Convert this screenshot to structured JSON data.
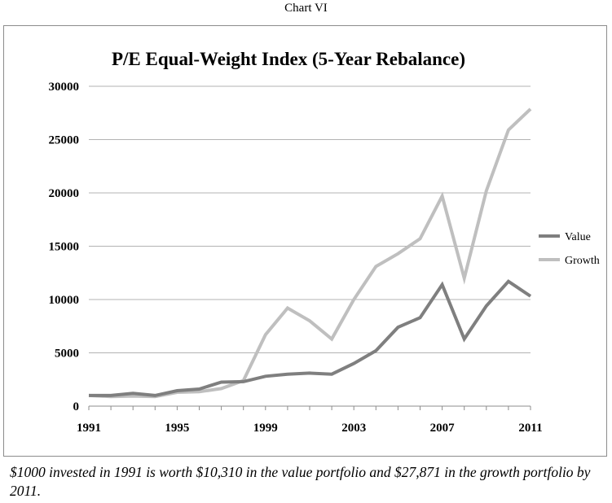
{
  "page": {
    "heading": "Chart VI",
    "caption": "$1000 invested in 1991 is worth $10,310 in the value portfolio and $27,871 in the growth portfolio by 2011."
  },
  "colors": {
    "value": "#7f7f7f",
    "growth": "#bfbfbf",
    "grid": "#b3b3b3",
    "axis": "#8c8c8c"
  },
  "chart_data": {
    "type": "line",
    "title": "P/E Equal-Weight Index (5-Year Rebalance)",
    "xlabel": "",
    "ylabel": "",
    "x": [
      1991,
      1992,
      1993,
      1994,
      1995,
      1996,
      1997,
      1998,
      1999,
      2000,
      2001,
      2002,
      2003,
      2004,
      2005,
      2006,
      2007,
      2008,
      2009,
      2010,
      2011
    ],
    "x_ticks": [
      "1991",
      "1995",
      "1999",
      "2003",
      "2007",
      "2011"
    ],
    "y_ticks": [
      "0",
      "5000",
      "10000",
      "15000",
      "20000",
      "25000",
      "30000"
    ],
    "ylim": [
      0,
      30000
    ],
    "grid": "horizontal",
    "legend_position": "right",
    "series": [
      {
        "name": "Value",
        "values": [
          1000,
          1000,
          1200,
          1000,
          1450,
          1600,
          2250,
          2300,
          2800,
          3000,
          3100,
          3000,
          4000,
          5200,
          7400,
          8300,
          11400,
          6300,
          9400,
          11700,
          10310
        ]
      },
      {
        "name": "Growth",
        "values": [
          1000,
          900,
          950,
          900,
          1300,
          1350,
          1650,
          2400,
          6700,
          9200,
          8000,
          6300,
          10000,
          13100,
          14300,
          15700,
          19700,
          12000,
          20200,
          25900,
          27871
        ]
      }
    ]
  }
}
